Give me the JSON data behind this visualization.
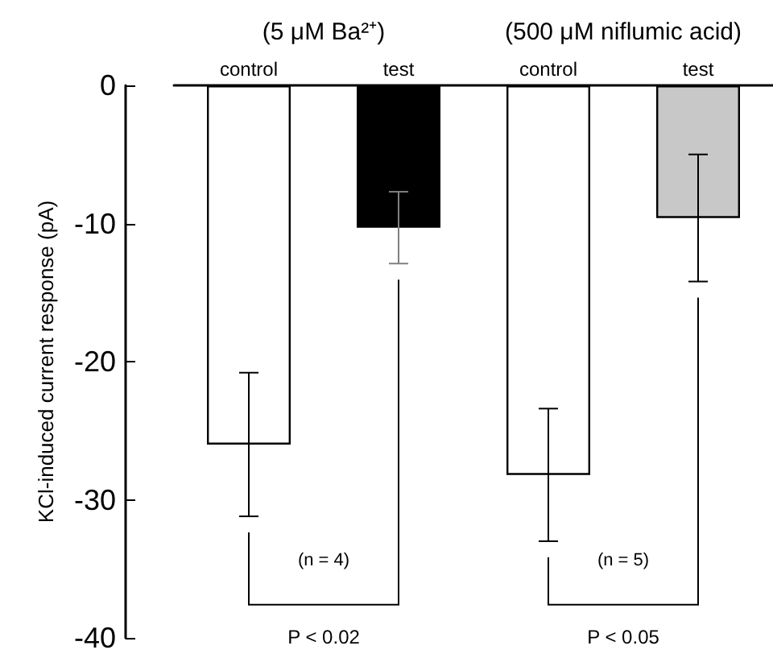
{
  "chart_data": {
    "type": "bar",
    "ylabel": "KCl-induced current response (pA)",
    "categories": [
      "control",
      "test",
      "control",
      "test"
    ],
    "values": [
      -26.0,
      -10.3,
      -28.2,
      -9.6
    ],
    "errors": [
      5.2,
      2.6,
      4.8,
      4.6
    ],
    "colors": [
      "#ffffff",
      "#000000",
      "#ffffff",
      "#c8c8c8"
    ],
    "ylim": [
      -40,
      0
    ],
    "yticks": [
      -40,
      -30,
      -20,
      -10,
      0
    ],
    "grid": false,
    "annotations": [
      "(5 μM Ba²⁺)",
      "(500 μM niflumic acid)",
      "(n = 4)",
      "(n = 5)",
      "P < 0.02",
      "P < 0.05"
    ]
  }
}
